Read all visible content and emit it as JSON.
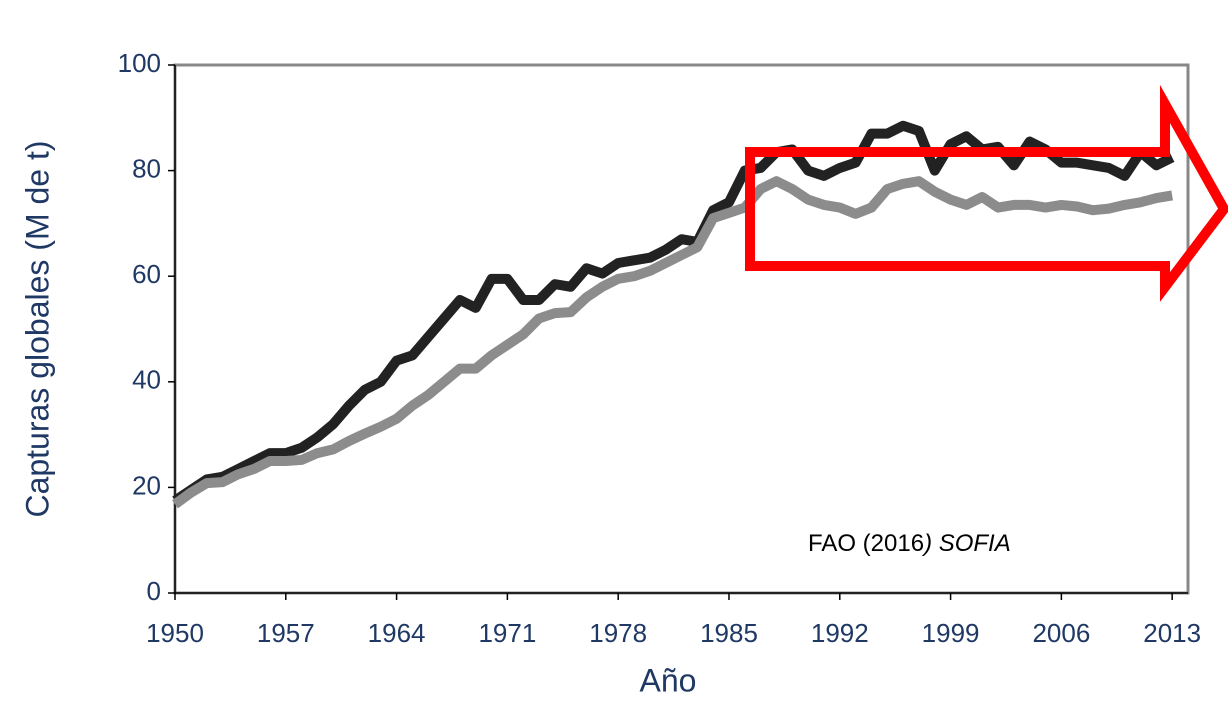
{
  "chart_data": {
    "type": "line",
    "ylabel": "Capturas globales (M de t)",
    "xlabel": "Año",
    "annotation": {
      "text": "FAO (2016",
      "italic_text": ") SOFIA"
    },
    "x": [
      1950,
      1951,
      1952,
      1953,
      1954,
      1955,
      1956,
      1957,
      1958,
      1959,
      1960,
      1961,
      1962,
      1963,
      1964,
      1965,
      1966,
      1967,
      1968,
      1969,
      1970,
      1971,
      1972,
      1973,
      1974,
      1975,
      1976,
      1977,
      1978,
      1979,
      1980,
      1981,
      1982,
      1983,
      1984,
      1985,
      1986,
      1987,
      1988,
      1989,
      1990,
      1991,
      1992,
      1993,
      1994,
      1995,
      1996,
      1997,
      1998,
      1999,
      2000,
      2001,
      2002,
      2003,
      2004,
      2005,
      2006,
      2007,
      2008,
      2009,
      2010,
      2011,
      2012,
      2013
    ],
    "series": [
      {
        "color": "#222222",
        "values": [
          17.5,
          19.5,
          21.5,
          22,
          23.5,
          25,
          26.5,
          26.5,
          27.5,
          29.5,
          32,
          35.5,
          38.5,
          40,
          44,
          45,
          48.5,
          52,
          55.5,
          54,
          59.5,
          59.5,
          55.5,
          55.5,
          58.5,
          58,
          61.5,
          60.5,
          62.5,
          63,
          63.5,
          65,
          67,
          66.5,
          72.5,
          74,
          80,
          80.5,
          83.5,
          84,
          80,
          79,
          80.5,
          81.5,
          87,
          87,
          88.5,
          87.5,
          80,
          85,
          86.5,
          84,
          84.5,
          81,
          85.5,
          84,
          81.5,
          81.5,
          81,
          80.5,
          79,
          83.5,
          81,
          82.5
        ]
      },
      {
        "color": "#8c8c8c",
        "values": [
          16.8,
          19,
          20.8,
          21,
          22.5,
          23.5,
          25,
          25,
          25.2,
          26.5,
          27.2,
          28.8,
          30.2,
          31.5,
          33,
          35.5,
          37.5,
          40,
          42.5,
          42.5,
          45,
          47,
          49,
          52,
          53,
          53.2,
          56,
          58,
          59.5,
          60,
          61,
          62.5,
          64,
          65.5,
          71,
          72,
          73,
          76.5,
          78,
          76.5,
          74.5,
          73.5,
          73,
          71.8,
          73,
          76.5,
          77.5,
          78,
          76,
          74.5,
          73.5,
          75,
          73,
          73.5,
          73.5,
          73,
          73.5,
          73.2,
          72.5,
          72.8,
          73.5,
          74,
          74.8,
          75.3
        ]
      }
    ],
    "xlim": [
      1950,
      2014
    ],
    "xticks": [
      1950,
      1957,
      1964,
      1971,
      1978,
      1985,
      1992,
      1999,
      2006,
      2013
    ],
    "ylim": [
      0,
      100
    ],
    "yticks": [
      0,
      20,
      40,
      60,
      80,
      100
    ]
  }
}
